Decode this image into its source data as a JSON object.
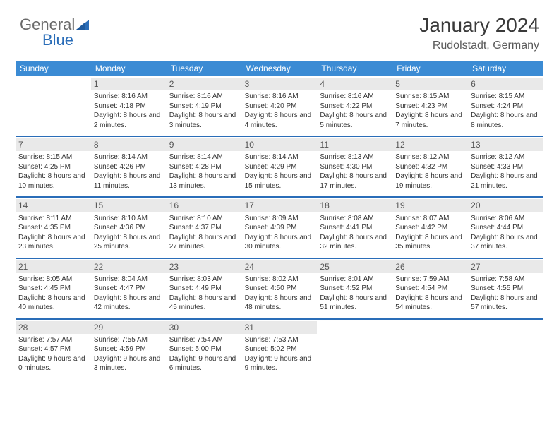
{
  "logo": {
    "part1": "General",
    "part2": "Blue"
  },
  "header": {
    "title": "January 2024",
    "location": "Rudolstadt, Germany"
  },
  "colors": {
    "header_bg": "#3b8bd4",
    "week_border": "#2a6db8",
    "daynum_bg": "#e9e9e9",
    "logo_accent": "#2a6db8",
    "text_muted": "#555555"
  },
  "dayNames": [
    "Sunday",
    "Monday",
    "Tuesday",
    "Wednesday",
    "Thursday",
    "Friday",
    "Saturday"
  ],
  "weeks": [
    [
      {
        "day": "",
        "empty": true
      },
      {
        "day": "1",
        "sunrise": "8:16 AM",
        "sunset": "4:18 PM",
        "daylight": "8 hours and 2 minutes."
      },
      {
        "day": "2",
        "sunrise": "8:16 AM",
        "sunset": "4:19 PM",
        "daylight": "8 hours and 3 minutes."
      },
      {
        "day": "3",
        "sunrise": "8:16 AM",
        "sunset": "4:20 PM",
        "daylight": "8 hours and 4 minutes."
      },
      {
        "day": "4",
        "sunrise": "8:16 AM",
        "sunset": "4:22 PM",
        "daylight": "8 hours and 5 minutes."
      },
      {
        "day": "5",
        "sunrise": "8:15 AM",
        "sunset": "4:23 PM",
        "daylight": "8 hours and 7 minutes."
      },
      {
        "day": "6",
        "sunrise": "8:15 AM",
        "sunset": "4:24 PM",
        "daylight": "8 hours and 8 minutes."
      }
    ],
    [
      {
        "day": "7",
        "sunrise": "8:15 AM",
        "sunset": "4:25 PM",
        "daylight": "8 hours and 10 minutes."
      },
      {
        "day": "8",
        "sunrise": "8:14 AM",
        "sunset": "4:26 PM",
        "daylight": "8 hours and 11 minutes."
      },
      {
        "day": "9",
        "sunrise": "8:14 AM",
        "sunset": "4:28 PM",
        "daylight": "8 hours and 13 minutes."
      },
      {
        "day": "10",
        "sunrise": "8:14 AM",
        "sunset": "4:29 PM",
        "daylight": "8 hours and 15 minutes."
      },
      {
        "day": "11",
        "sunrise": "8:13 AM",
        "sunset": "4:30 PM",
        "daylight": "8 hours and 17 minutes."
      },
      {
        "day": "12",
        "sunrise": "8:12 AM",
        "sunset": "4:32 PM",
        "daylight": "8 hours and 19 minutes."
      },
      {
        "day": "13",
        "sunrise": "8:12 AM",
        "sunset": "4:33 PM",
        "daylight": "8 hours and 21 minutes."
      }
    ],
    [
      {
        "day": "14",
        "sunrise": "8:11 AM",
        "sunset": "4:35 PM",
        "daylight": "8 hours and 23 minutes."
      },
      {
        "day": "15",
        "sunrise": "8:10 AM",
        "sunset": "4:36 PM",
        "daylight": "8 hours and 25 minutes."
      },
      {
        "day": "16",
        "sunrise": "8:10 AM",
        "sunset": "4:37 PM",
        "daylight": "8 hours and 27 minutes."
      },
      {
        "day": "17",
        "sunrise": "8:09 AM",
        "sunset": "4:39 PM",
        "daylight": "8 hours and 30 minutes."
      },
      {
        "day": "18",
        "sunrise": "8:08 AM",
        "sunset": "4:41 PM",
        "daylight": "8 hours and 32 minutes."
      },
      {
        "day": "19",
        "sunrise": "8:07 AM",
        "sunset": "4:42 PM",
        "daylight": "8 hours and 35 minutes."
      },
      {
        "day": "20",
        "sunrise": "8:06 AM",
        "sunset": "4:44 PM",
        "daylight": "8 hours and 37 minutes."
      }
    ],
    [
      {
        "day": "21",
        "sunrise": "8:05 AM",
        "sunset": "4:45 PM",
        "daylight": "8 hours and 40 minutes."
      },
      {
        "day": "22",
        "sunrise": "8:04 AM",
        "sunset": "4:47 PM",
        "daylight": "8 hours and 42 minutes."
      },
      {
        "day": "23",
        "sunrise": "8:03 AM",
        "sunset": "4:49 PM",
        "daylight": "8 hours and 45 minutes."
      },
      {
        "day": "24",
        "sunrise": "8:02 AM",
        "sunset": "4:50 PM",
        "daylight": "8 hours and 48 minutes."
      },
      {
        "day": "25",
        "sunrise": "8:01 AM",
        "sunset": "4:52 PM",
        "daylight": "8 hours and 51 minutes."
      },
      {
        "day": "26",
        "sunrise": "7:59 AM",
        "sunset": "4:54 PM",
        "daylight": "8 hours and 54 minutes."
      },
      {
        "day": "27",
        "sunrise": "7:58 AM",
        "sunset": "4:55 PM",
        "daylight": "8 hours and 57 minutes."
      }
    ],
    [
      {
        "day": "28",
        "sunrise": "7:57 AM",
        "sunset": "4:57 PM",
        "daylight": "9 hours and 0 minutes."
      },
      {
        "day": "29",
        "sunrise": "7:55 AM",
        "sunset": "4:59 PM",
        "daylight": "9 hours and 3 minutes."
      },
      {
        "day": "30",
        "sunrise": "7:54 AM",
        "sunset": "5:00 PM",
        "daylight": "9 hours and 6 minutes."
      },
      {
        "day": "31",
        "sunrise": "7:53 AM",
        "sunset": "5:02 PM",
        "daylight": "9 hours and 9 minutes."
      },
      {
        "day": "",
        "empty": true
      },
      {
        "day": "",
        "empty": true
      },
      {
        "day": "",
        "empty": true
      }
    ]
  ],
  "labels": {
    "sunrise": "Sunrise:",
    "sunset": "Sunset:",
    "daylight": "Daylight:"
  }
}
